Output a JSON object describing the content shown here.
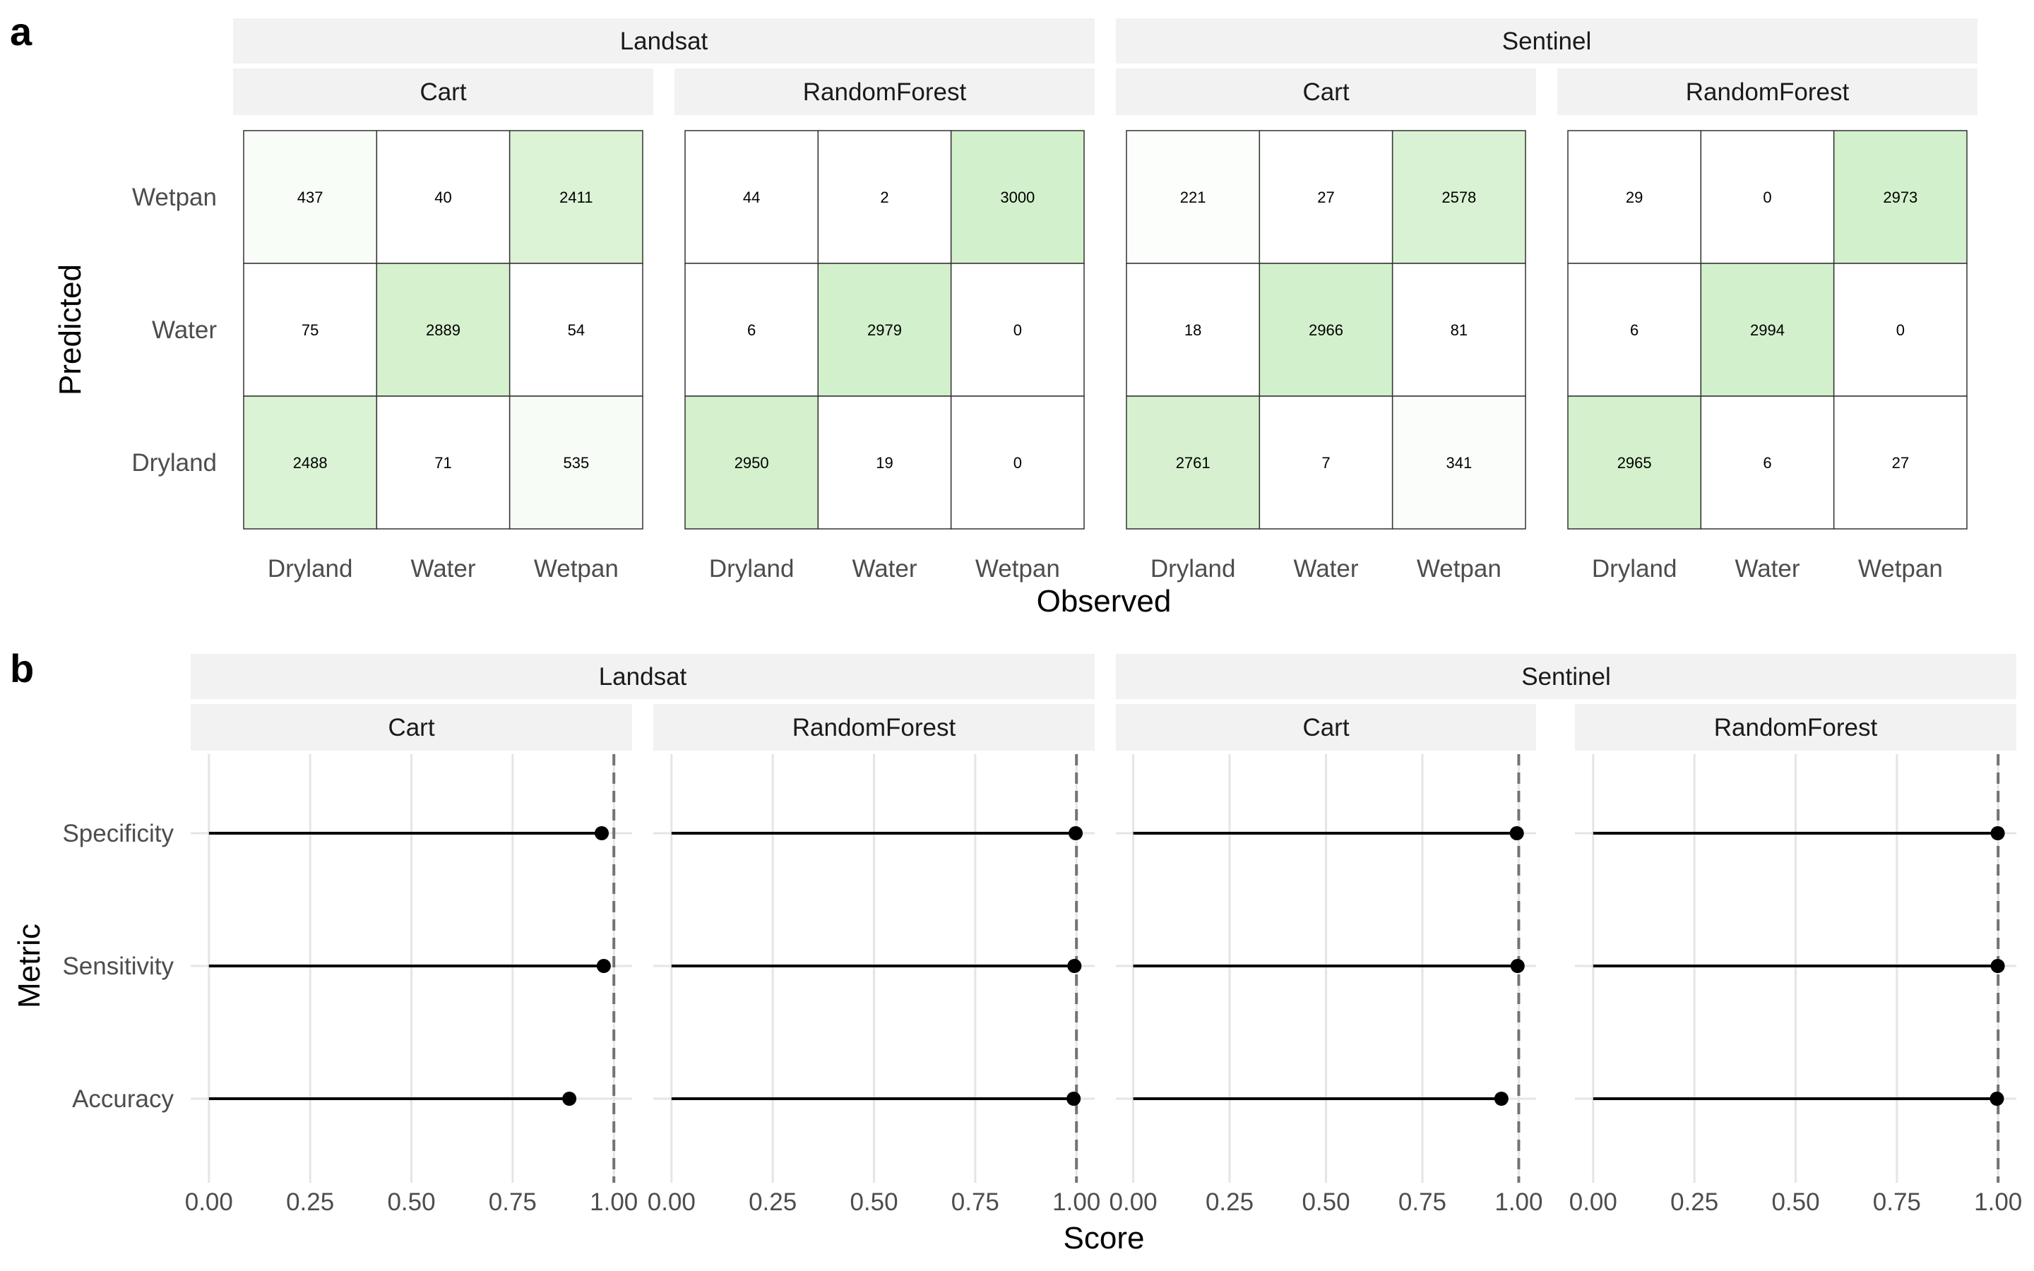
{
  "panel_tags": [
    "a",
    "b"
  ],
  "chart_data": [
    {
      "type": "heatmap",
      "panel_tag": "a",
      "xlabel": "Observed",
      "ylabel": "Predicted",
      "x_categories": [
        "Dryland",
        "Water",
        "Wetpan"
      ],
      "y_categories": [
        "Wetpan",
        "Water",
        "Dryland"
      ],
      "low_color": "#ffffff",
      "high_color": "#d3f0cc",
      "max_value": 3000,
      "groups": [
        {
          "name": "Landsat",
          "panels": [
            {
              "name": "Cart",
              "matrix": [
                [
                  437,
                  40,
                  2411
                ],
                [
                  75,
                  2889,
                  54
                ],
                [
                  2488,
                  71,
                  535
                ]
              ]
            },
            {
              "name": "RandomForest",
              "matrix": [
                [
                  44,
                  2,
                  3000
                ],
                [
                  6,
                  2979,
                  0
                ],
                [
                  2950,
                  19,
                  0
                ]
              ]
            }
          ]
        },
        {
          "name": "Sentinel",
          "panels": [
            {
              "name": "Cart",
              "matrix": [
                [
                  221,
                  27,
                  2578
                ],
                [
                  18,
                  2966,
                  81
                ],
                [
                  2761,
                  7,
                  341
                ]
              ]
            },
            {
              "name": "RandomForest",
              "matrix": [
                [
                  29,
                  0,
                  2973
                ],
                [
                  6,
                  2994,
                  0
                ],
                [
                  2965,
                  6,
                  27
                ]
              ]
            }
          ]
        }
      ]
    },
    {
      "type": "lollipop",
      "panel_tag": "b",
      "xlabel": "Score",
      "ylabel": "Metric",
      "categories": [
        "Specificity",
        "Sensitivity",
        "Accuracy"
      ],
      "xlim": [
        0,
        1
      ],
      "x_ticks": [
        "0.00",
        "0.25",
        "0.50",
        "0.75",
        "1.00"
      ],
      "reference_line": 1.0,
      "groups": [
        {
          "name": "Landsat",
          "panels": [
            {
              "name": "Cart",
              "values": [
                0.97,
                0.975,
                0.89
              ]
            },
            {
              "name": "RandomForest",
              "values": [
                0.998,
                0.995,
                0.993
              ]
            }
          ]
        },
        {
          "name": "Sentinel",
          "panels": [
            {
              "name": "Cart",
              "values": [
                0.995,
                0.997,
                0.955
              ]
            },
            {
              "name": "RandomForest",
              "values": [
                0.999,
                0.999,
                0.997
              ]
            }
          ]
        }
      ]
    }
  ]
}
